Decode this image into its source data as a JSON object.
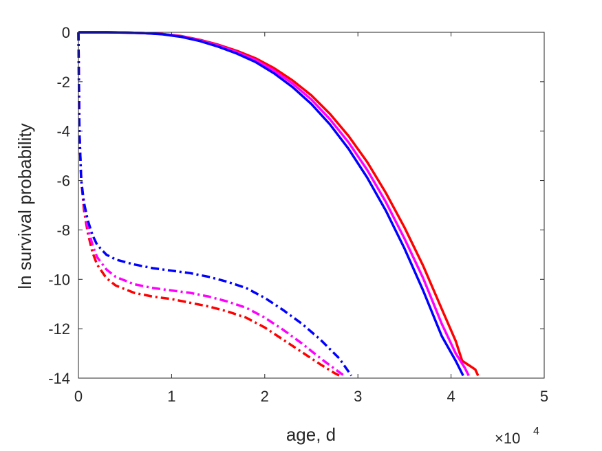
{
  "chart_data": {
    "type": "line",
    "title": "",
    "xlabel": "age, d",
    "ylabel": "ln survival probability",
    "x_multiplier_label": "×10",
    "x_multiplier_exponent": "4",
    "xlim": [
      0,
      50000
    ],
    "ylim": [
      -14,
      0
    ],
    "xticks": [
      0,
      10000,
      20000,
      30000,
      40000,
      50000
    ],
    "xtick_labels": [
      "0",
      "1",
      "2",
      "3",
      "4",
      "5"
    ],
    "yticks": [
      0,
      -2,
      -4,
      -6,
      -8,
      -10,
      -12,
      -14
    ],
    "ytick_labels": [
      "0",
      "-2",
      "-4",
      "-6",
      "-8",
      "-10",
      "-12",
      "-14"
    ],
    "grid": false,
    "series": [
      {
        "color": "#ff0000",
        "style": "solid",
        "x": [
          0,
          1000,
          3000,
          5000,
          7000,
          9000,
          11000,
          13000,
          15000,
          17000,
          19000,
          21000,
          23000,
          25000,
          27000,
          29000,
          31000,
          33000,
          35000,
          37000,
          39000,
          40500,
          41200,
          42000,
          42600,
          42900
        ],
        "y": [
          0,
          0,
          0,
          -0.01,
          -0.03,
          -0.07,
          -0.15,
          -0.3,
          -0.5,
          -0.75,
          -1.05,
          -1.45,
          -1.95,
          -2.55,
          -3.3,
          -4.2,
          -5.25,
          -6.5,
          -7.9,
          -9.45,
          -11.2,
          -12.5,
          -13.3,
          -13.5,
          -13.65,
          -13.9
        ]
      },
      {
        "color": "#ff00ff",
        "style": "solid",
        "x": [
          0,
          1000,
          3000,
          5000,
          7000,
          9000,
          11000,
          13000,
          15000,
          17000,
          19000,
          21000,
          23000,
          25000,
          27000,
          29000,
          31000,
          33000,
          35000,
          37000,
          39000,
          40500,
          41500,
          41900
        ],
        "y": [
          0,
          0,
          0,
          -0.01,
          -0.03,
          -0.07,
          -0.16,
          -0.32,
          -0.53,
          -0.8,
          -1.12,
          -1.55,
          -2.08,
          -2.72,
          -3.52,
          -4.46,
          -5.57,
          -6.87,
          -8.35,
          -9.95,
          -11.8,
          -13.0,
          -13.6,
          -13.9
        ]
      },
      {
        "color": "#0000ff",
        "style": "solid",
        "x": [
          0,
          1000,
          3000,
          5000,
          7000,
          9000,
          11000,
          13000,
          15000,
          17000,
          19000,
          21000,
          23000,
          25000,
          27000,
          29000,
          31000,
          33000,
          35000,
          37000,
          39000,
          40500,
          41300
        ],
        "y": [
          0,
          0,
          0,
          -0.01,
          -0.03,
          -0.08,
          -0.18,
          -0.35,
          -0.58,
          -0.86,
          -1.2,
          -1.66,
          -2.22,
          -2.9,
          -3.73,
          -4.72,
          -5.88,
          -7.22,
          -8.75,
          -10.45,
          -12.3,
          -13.3,
          -13.9
        ]
      },
      {
        "color": "#ff0000",
        "style": "dashdot",
        "x": [
          0,
          100,
          300,
          600,
          1000,
          1500,
          2000,
          3000,
          4000,
          6000,
          8000,
          10000,
          12000,
          14000,
          16000,
          18000,
          20000,
          22000,
          24000,
          26000,
          27500,
          28300
        ],
        "y": [
          0,
          -4,
          -6,
          -7.2,
          -8.1,
          -8.9,
          -9.4,
          -9.95,
          -10.25,
          -10.55,
          -10.7,
          -10.8,
          -10.95,
          -11.1,
          -11.3,
          -11.55,
          -11.95,
          -12.45,
          -12.95,
          -13.45,
          -13.8,
          -13.95
        ]
      },
      {
        "color": "#ff00ff",
        "style": "dashdot",
        "x": [
          0,
          100,
          300,
          600,
          1000,
          1500,
          2000,
          3000,
          4000,
          6000,
          8000,
          10000,
          12000,
          14000,
          16000,
          18000,
          20000,
          22000,
          24000,
          26000,
          27600,
          28700
        ],
        "y": [
          0,
          -4,
          -6,
          -7.0,
          -7.9,
          -8.6,
          -9.1,
          -9.6,
          -9.9,
          -10.2,
          -10.35,
          -10.45,
          -10.55,
          -10.7,
          -10.9,
          -11.15,
          -11.55,
          -12.05,
          -12.6,
          -13.2,
          -13.65,
          -13.95
        ]
      },
      {
        "color": "#0000ff",
        "style": "dashdot",
        "x": [
          0,
          100,
          300,
          600,
          1000,
          1500,
          2000,
          3000,
          4000,
          6000,
          8000,
          10000,
          12000,
          14000,
          16000,
          18000,
          20000,
          22000,
          24000,
          26000,
          28000,
          29300
        ],
        "y": [
          0,
          -4,
          -6,
          -6.9,
          -7.6,
          -8.2,
          -8.6,
          -9.0,
          -9.2,
          -9.4,
          -9.55,
          -9.65,
          -9.75,
          -9.9,
          -10.1,
          -10.35,
          -10.75,
          -11.25,
          -11.8,
          -12.45,
          -13.2,
          -13.9
        ]
      }
    ]
  }
}
